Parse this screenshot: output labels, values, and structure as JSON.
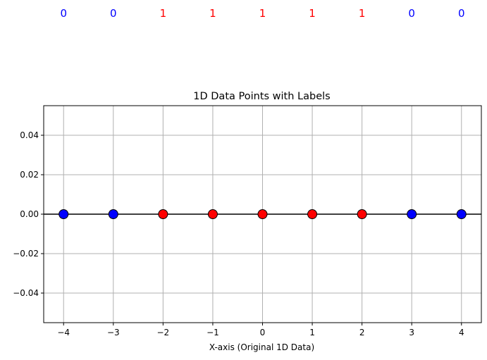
{
  "chart_data": {
    "type": "scatter",
    "title": "1D Data Points with Labels",
    "xlabel": "X-axis (Original 1D Data)",
    "ylabel": "",
    "xlim": [
      -4.4,
      4.4
    ],
    "ylim": [
      -0.055,
      0.055
    ],
    "x_ticks": [
      -4,
      -3,
      -2,
      -1,
      0,
      1,
      2,
      3,
      4
    ],
    "x_tick_labels": [
      "−4",
      "−3",
      "−2",
      "−1",
      "0",
      "1",
      "2",
      "3",
      "4"
    ],
    "y_ticks": [
      -0.04,
      -0.02,
      0.0,
      0.02,
      0.04
    ],
    "y_tick_labels": [
      "−0.04",
      "−0.02",
      "0.00",
      "0.02",
      "0.04"
    ],
    "grid": true,
    "baseline_y": 0,
    "points": [
      {
        "x": -4,
        "y": 0,
        "label": "0"
      },
      {
        "x": -3,
        "y": 0,
        "label": "0"
      },
      {
        "x": -2,
        "y": 0,
        "label": "1"
      },
      {
        "x": -1,
        "y": 0,
        "label": "1"
      },
      {
        "x": 0,
        "y": 0,
        "label": "1"
      },
      {
        "x": 1,
        "y": 0,
        "label": "1"
      },
      {
        "x": 2,
        "y": 0,
        "label": "1"
      },
      {
        "x": 3,
        "y": 0,
        "label": "0"
      },
      {
        "x": 4,
        "y": 0,
        "label": "0"
      }
    ],
    "label_colors": {
      "0": "#0000ff",
      "1": "#ff0000"
    },
    "grid_color": "#b0b0b0",
    "edge_color": "#000000"
  }
}
